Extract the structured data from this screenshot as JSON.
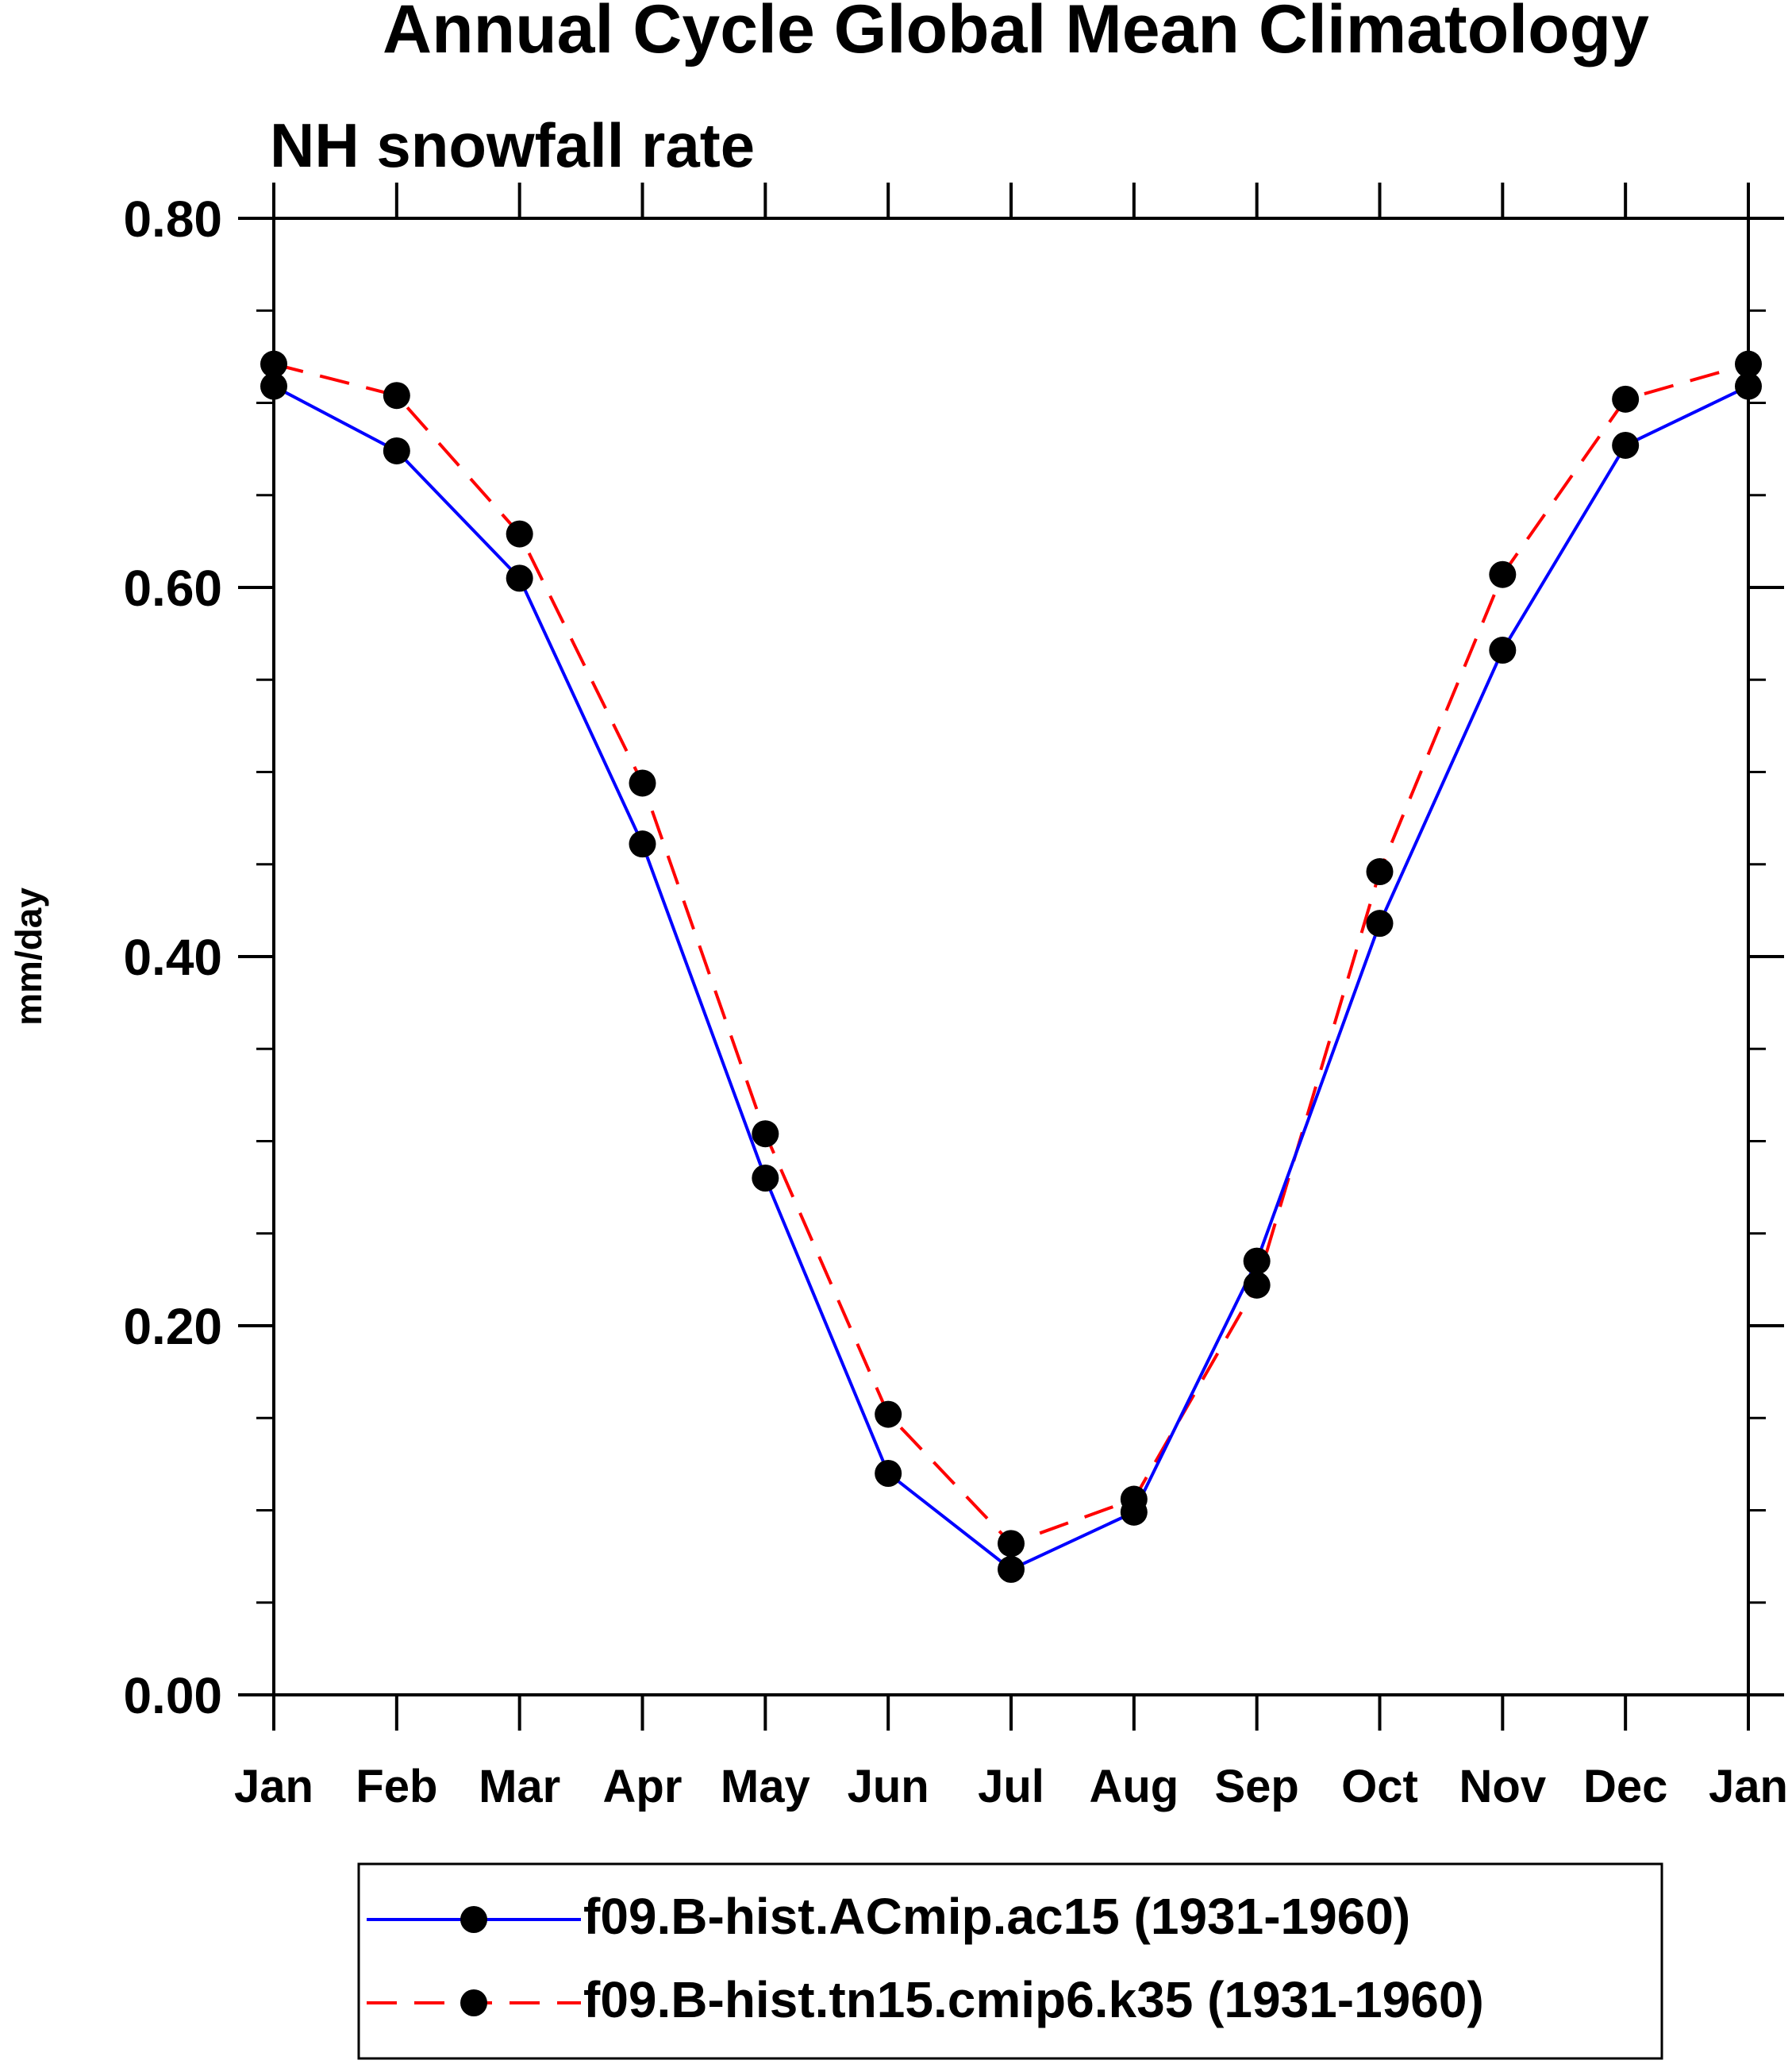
{
  "chart_data": {
    "type": "line",
    "title": "Annual Cycle Global Mean Climatology",
    "subtitle": "NH snowfall rate",
    "xlabel": "",
    "ylabel": "mm/day",
    "ylim": [
      0.0,
      0.8
    ],
    "yticks": [
      "0.00",
      "0.20",
      "0.40",
      "0.60",
      "0.80"
    ],
    "ytick_values": [
      0.0,
      0.2,
      0.4,
      0.6,
      0.8
    ],
    "categories": [
      "Jan",
      "Feb",
      "Mar",
      "Apr",
      "May",
      "Jun",
      "Jul",
      "Aug",
      "Sep",
      "Oct",
      "Nov",
      "Dec",
      "Jan"
    ],
    "grid": false,
    "legend_position": "bottom-center",
    "series": [
      {
        "name": "f09.B-hist.ACmip.ac15 (1931-1960)",
        "color": "#0000ff",
        "dash": "solid",
        "values": [
          0.709,
          0.674,
          0.605,
          0.461,
          0.28,
          0.12,
          0.068,
          0.099,
          0.235,
          0.418,
          0.566,
          0.677,
          0.709
        ]
      },
      {
        "name": "f09.B-hist.tn15.cmip6.k35 (1931-1960)",
        "color": "#ff0000",
        "dash": "dashed",
        "values": [
          0.721,
          0.704,
          0.629,
          0.494,
          0.304,
          0.152,
          0.082,
          0.106,
          0.222,
          0.446,
          0.607,
          0.702,
          0.721
        ]
      }
    ]
  }
}
